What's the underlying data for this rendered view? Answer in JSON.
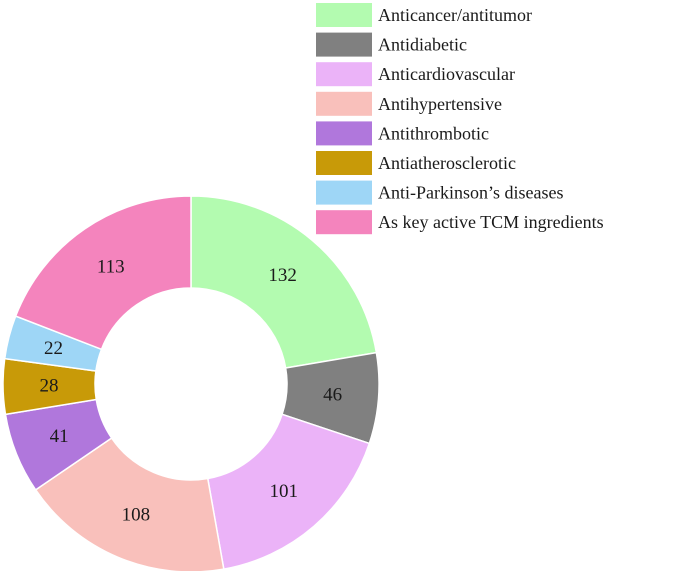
{
  "chart_data": {
    "type": "donut",
    "legend_placement": "top-right",
    "categories": [
      "Anticancer/antitumor",
      "Antidiabetic",
      "Anticardiovascular",
      "Antihypertensive",
      "Antithrombotic",
      "Antiatherosclerotic",
      "Anti-Parkinson’s diseases",
      "As key active TCM ingredients"
    ],
    "values": [
      132,
      46,
      101,
      108,
      41,
      28,
      22,
      113
    ],
    "value_labels": [
      "132",
      "46",
      "101",
      "108",
      "41",
      "28",
      "22",
      "113"
    ],
    "colors": [
      "#b3fbb0",
      "#808080",
      "#ebb3f8",
      "#f9c0bb",
      "#b077dc",
      "#c89a08",
      "#9ed6f6",
      "#f484bd"
    ]
  }
}
